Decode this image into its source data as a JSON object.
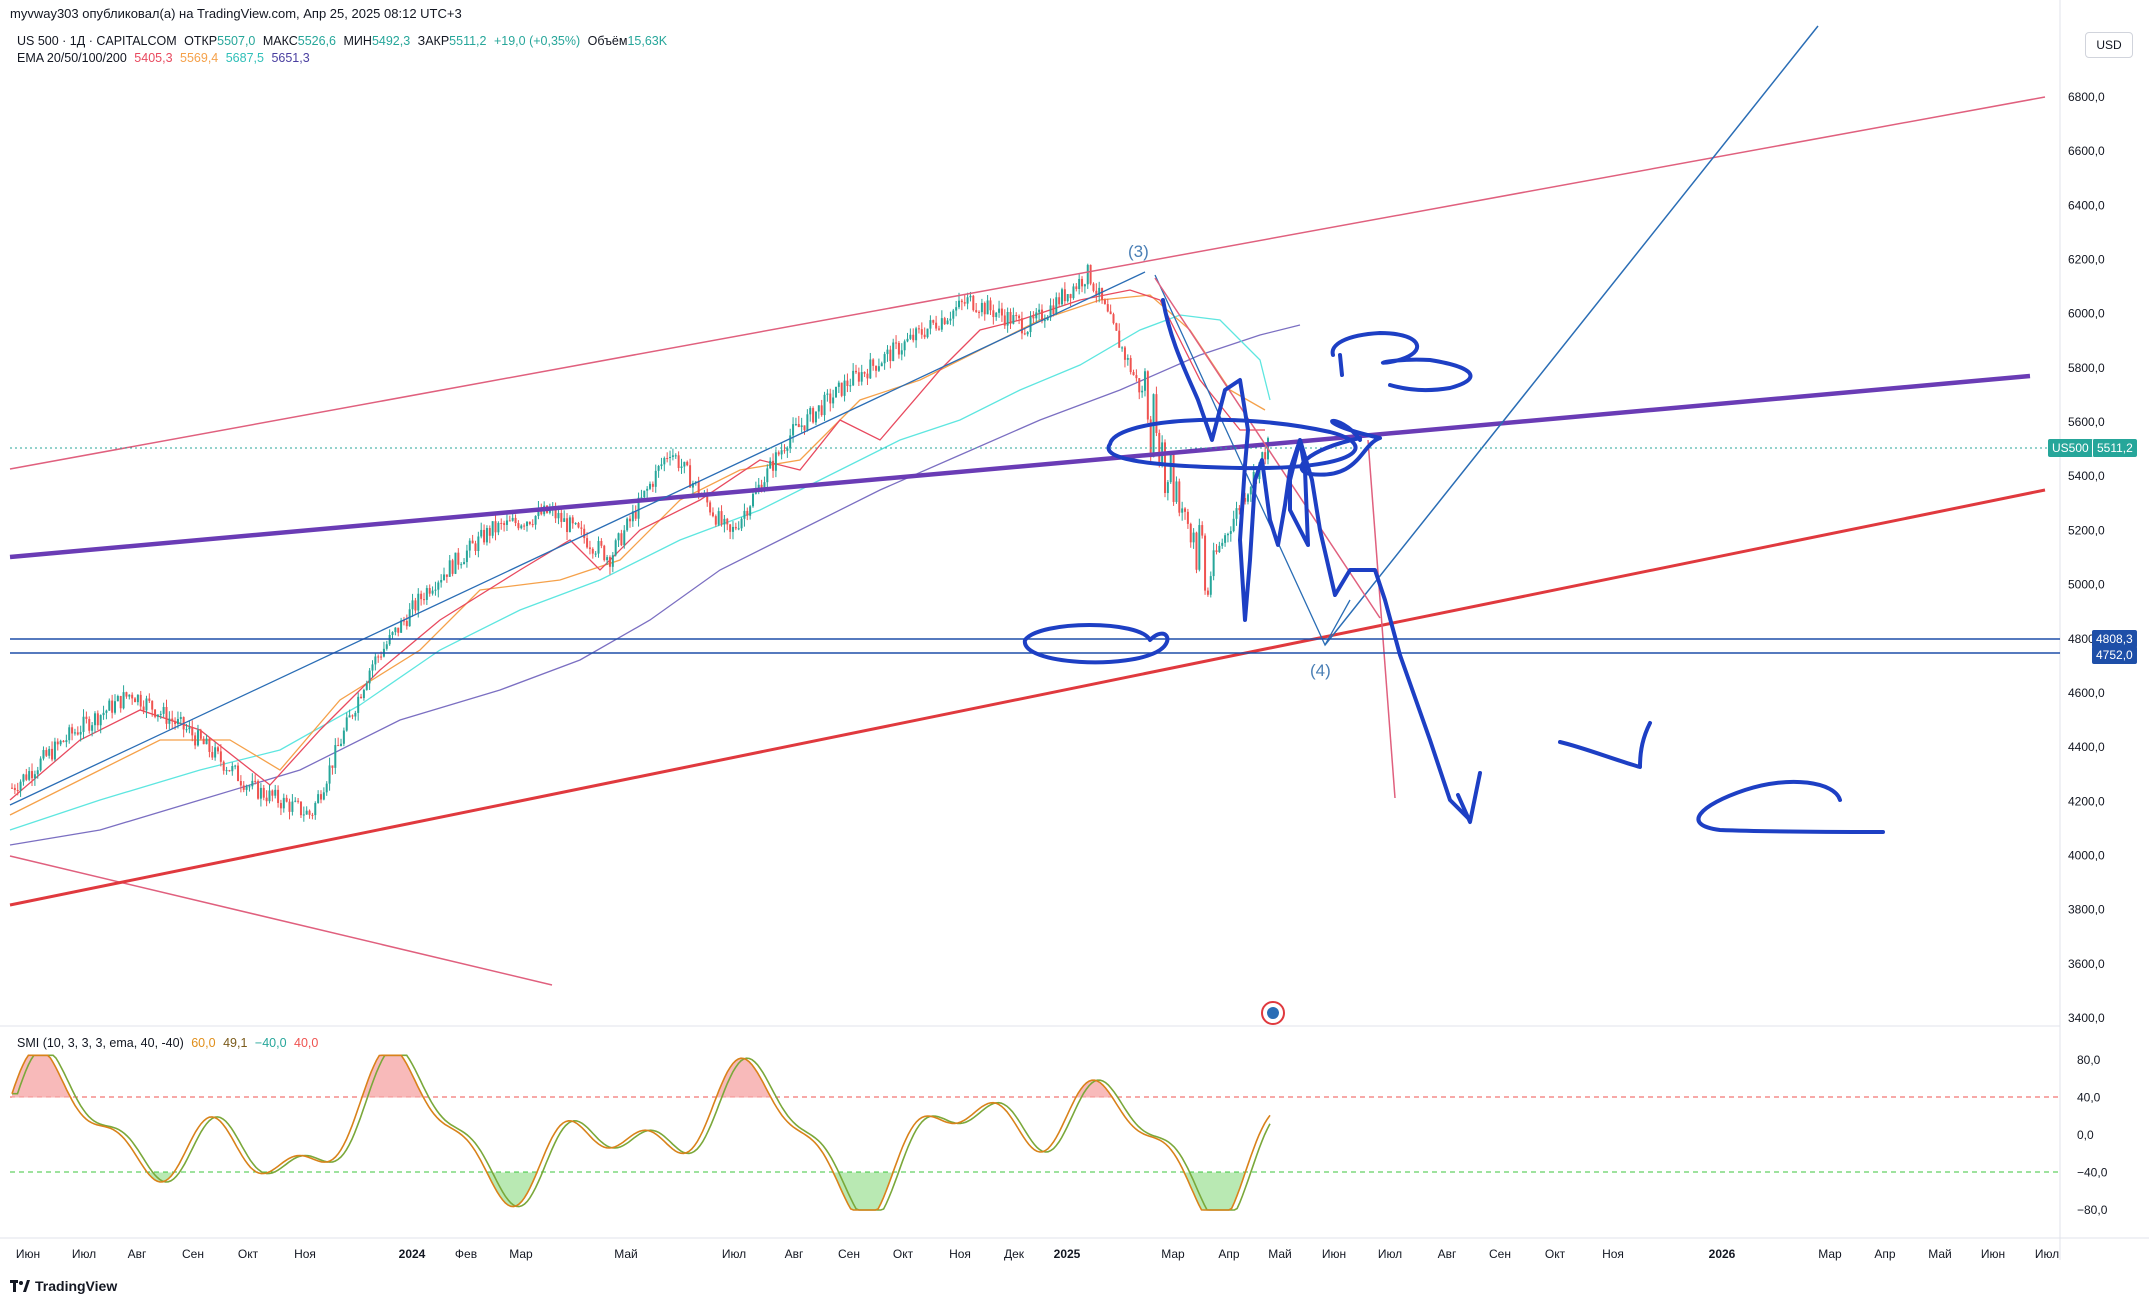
{
  "header": {
    "published": "myvway303 опубликовал(а) на TradingView.com, Апр 25, 2025 08:12 UTC+3"
  },
  "legend": {
    "symbol": "US 500 · 1Д · CAPITALCOM",
    "open_label": "ОТКР",
    "open": "5507,0",
    "high_label": "МАКС",
    "high": "5526,6",
    "low_label": "МИН",
    "low": "5492,3",
    "close_label": "ЗАКР",
    "close": "5511,2",
    "change": "+19,0 (+0,35%)",
    "volume_label": "Объём",
    "volume": "15,63K",
    "ema_label": "EMA 20/50/100/200",
    "ema20": "5405,3",
    "ema50": "5569,4",
    "ema100": "5687,5",
    "ema200": "5651,3"
  },
  "smi_legend": {
    "label": "SMI (10, 3, 3, 3, ema, 40, -40)",
    "v1": "60,0",
    "v2": "49,1",
    "v3": "−40,0",
    "v4": "40,0"
  },
  "currency": "USD",
  "tags": {
    "symbol_tag": "US500",
    "price_tag": "5511,2",
    "level1": "4808,3",
    "level2": "4752,0"
  },
  "annotations": {
    "wave3": "(3)",
    "wave4": "(4)"
  },
  "logo_text": "TradingView",
  "colors": {
    "up": "#26a69a",
    "down": "#ef5350",
    "ema20": "#e84a5f",
    "ema50": "#f5a14a",
    "ema100": "#5ee6e0",
    "ema200": "#7b6fc2",
    "channel": "#e0607e",
    "purple": "#6a3cb5",
    "red_line": "#e0393e",
    "blue_line": "#2a6db5",
    "hand": "#1d3fc4",
    "smi": "#e08e1a",
    "smi_signal": "#7aa83a"
  },
  "chart_data": {
    "type": "line",
    "title": "US 500 · 1Д · CAPITALCOM",
    "y_axis": {
      "min": 3400,
      "max": 6800,
      "ticks": [
        "6800,0",
        "6600,0",
        "6400,0",
        "6200,0",
        "6000,0",
        "5800,0",
        "5600,0",
        "5400,0",
        "5200,0",
        "5000,0",
        "4800,0",
        "4600,0",
        "4400,0",
        "4200,0",
        "4000,0",
        "3800,0",
        "3600,0",
        "3400,0"
      ],
      "tick_values": [
        6800,
        6600,
        6400,
        6200,
        6000,
        5800,
        5600,
        5400,
        5200,
        5000,
        4800,
        4600,
        4400,
        4200,
        4000,
        3800,
        3600,
        3400
      ]
    },
    "smi_axis": {
      "ticks": [
        "80,0",
        "40,0",
        "0,0",
        "−40,0",
        "−80,0"
      ],
      "tick_values": [
        80,
        40,
        0,
        -40,
        -80
      ]
    },
    "x_axis_labels": [
      "Июн",
      "Июл",
      "Авг",
      "Сен",
      "Окт",
      "Ноя",
      "2024",
      "Фев",
      "Мар",
      "Май",
      "Июл",
      "Авг",
      "Сен",
      "Окт",
      "Ноя",
      "Дек",
      "2025",
      "Мар",
      "Апр",
      "Май",
      "Июн",
      "Июл",
      "Авг",
      "Сен",
      "Окт",
      "Ноя",
      "2026",
      "Мар",
      "Апр",
      "Май",
      "Июн",
      "Июл"
    ],
    "price_path": {
      "x": [
        "2023-06",
        "2023-07",
        "2023-08",
        "2023-09",
        "2023-10",
        "2023-11",
        "2024-01",
        "2024-02",
        "2024-03",
        "2024-04",
        "2024-05",
        "2024-07",
        "2024-08",
        "2024-09",
        "2024-10",
        "2024-11",
        "2024-12",
        "2025-01",
        "2025-02",
        "2025-03",
        "2025-04",
        "2025-04-25"
      ],
      "close": [
        4250,
        4450,
        4600,
        4450,
        4250,
        4150,
        4700,
        5000,
        5200,
        5270,
        5100,
        5500,
        5180,
        5550,
        5750,
        5900,
        6050,
        5950,
        6150,
        5650,
        5050,
        5511.2
      ]
    },
    "horizontal_levels": [
      4808.3,
      4752.0
    ],
    "last_price": 5511.2,
    "smi_levels": {
      "upper": 40,
      "lower": -40
    }
  }
}
